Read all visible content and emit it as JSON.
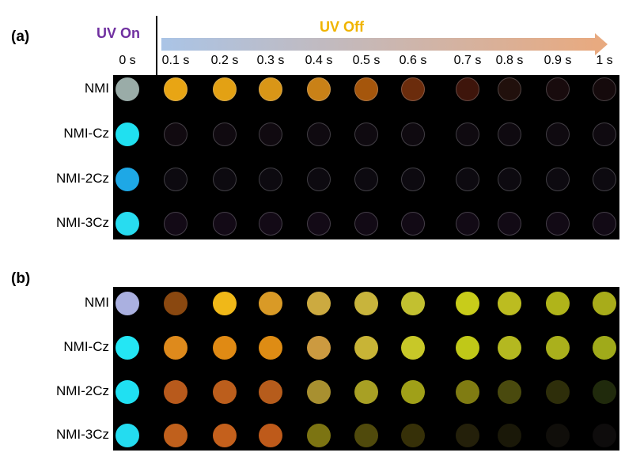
{
  "panel_a_label": "(a)",
  "panel_b_label": "(b)",
  "uv_on_label": "UV  On",
  "uv_off_label": "UV  Off",
  "times": [
    "0 s",
    "0.1 s",
    "0.2 s",
    "0.3 s",
    "0.4 s",
    "0.5 s",
    "0.6 s",
    "0.7 s",
    "0.8 s",
    "0.9 s",
    "1 s"
  ],
  "rows": [
    "NMI",
    "NMI-Cz",
    "NMI-2Cz",
    "NMI-3Cz"
  ],
  "colors": {
    "arrow_start": "#aac4e6",
    "arrow_end": "#e8aa80"
  },
  "panel_a": [
    [
      "#9aaca8",
      "#e8a514",
      "#e3a114",
      "#d99617",
      "#c98117",
      "#a5560c",
      "#6b2c0c",
      "#3e150b",
      "#21100c",
      "#180b0d",
      "#150a0c"
    ],
    [
      "#20e0f0",
      "#110a10",
      "#100a10",
      "#100a10",
      "#0f0a10",
      "#0f0a10",
      "#0f0a10",
      "#0f0a10",
      "#0f0a10",
      "#0f0a10",
      "#0f0a10"
    ],
    [
      "#1ea8e6",
      "#0d0a10",
      "#0d0a10",
      "#0d0a10",
      "#0d0a10",
      "#0d0a10",
      "#0d0a10",
      "#0d0a10",
      "#0d0a10",
      "#0d0a10",
      "#0d0a10"
    ],
    [
      "#28dcf0",
      "#130a16",
      "#130a16",
      "#130a16",
      "#130a16",
      "#120a15",
      "#120a15",
      "#120a15",
      "#120a15",
      "#120a15",
      "#120a15"
    ]
  ],
  "panel_b": [
    [
      "#aab0e0",
      "#8a4810",
      "#f0b818",
      "#d99a26",
      "#ccaa40",
      "#c8b43c",
      "#c2c030",
      "#c8cc1a",
      "#bcbc20",
      "#b0b41a",
      "#a8ac1a"
    ],
    [
      "#24e6f4",
      "#de8a1c",
      "#e08a14",
      "#de8c14",
      "#cc9a40",
      "#c8b436",
      "#c8c828",
      "#c0c818",
      "#b4b820",
      "#aab01c",
      "#a0aa1a"
    ],
    [
      "#20e0f2",
      "#b85a1c",
      "#bc5e1c",
      "#b65c1c",
      "#a89030",
      "#a8a024",
      "#a0a018",
      "#807c12",
      "#4a4a0e",
      "#2e2e0a",
      "#202a0c"
    ],
    [
      "#24dcf0",
      "#c0601c",
      "#c4601c",
      "#be5a1a",
      "#7c7412",
      "#504a0c",
      "#363008",
      "#24200a",
      "#1a1808",
      "#100e0a",
      "#0e0c0c"
    ]
  ]
}
